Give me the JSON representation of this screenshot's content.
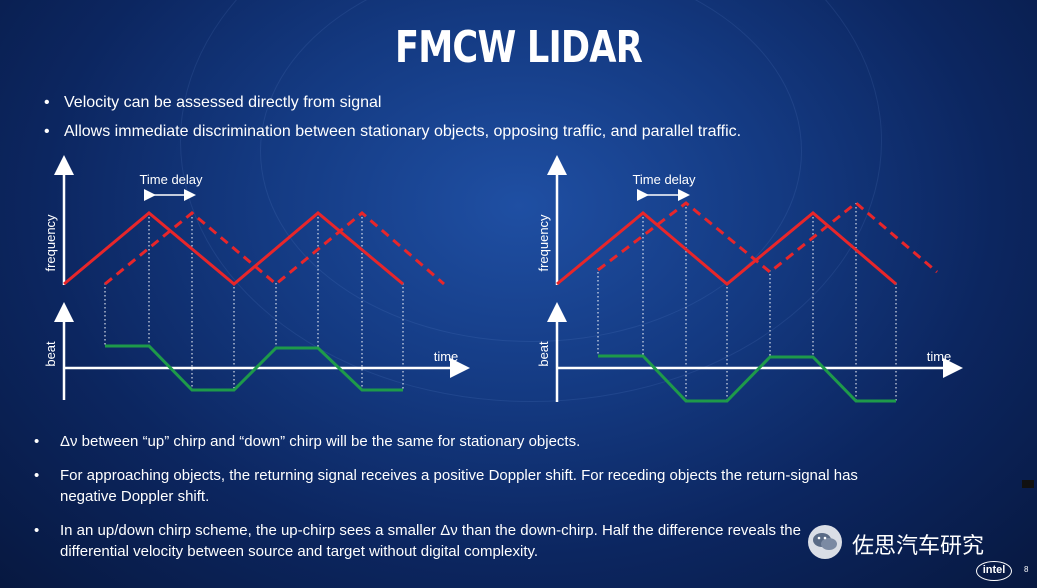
{
  "title": "FMCW LIDAR",
  "top_bullets": [
    {
      "symbol": "•",
      "text": "Velocity can be assessed directly from signal"
    },
    {
      "symbol": "•",
      "text": "Allows immediate discrimination between stationary objects, opposing traffic, and parallel traffic."
    }
  ],
  "diagram_left": {
    "time_delay": "Time delay",
    "freq_axis_label": "frequency",
    "beat_axis_label": "beat",
    "time_axis_label": "time"
  },
  "diagram_right": {
    "time_delay": "Time delay",
    "freq_axis_label": "frequency",
    "beat_axis_label": "beat",
    "time_axis_label": "time"
  },
  "bottom_bullets": [
    {
      "symbol": "•",
      "lines": [
        "Δν between “up” chirp and “down” chirp will be the same for stationary objects."
      ]
    },
    {
      "symbol": "•",
      "lines": [
        "For approaching objects, the returning signal receives a positive Doppler shift.  For receding objects the return-signal has",
        "negative Doppler shift."
      ]
    },
    {
      "symbol": "•",
      "lines": [
        "In an up/down chirp scheme, the up-chirp sees a smaller Δν than the down-chirp.  Half the difference reveals the",
        "differential velocity between source and target without digital complexity."
      ]
    }
  ],
  "watermark_text": "佐思汽车研究",
  "logo_text": "intel",
  "page_number": "8",
  "colors": {
    "transmit": "#e8262a",
    "beat": "#1e9a4a",
    "axis": "#ffffff"
  }
}
